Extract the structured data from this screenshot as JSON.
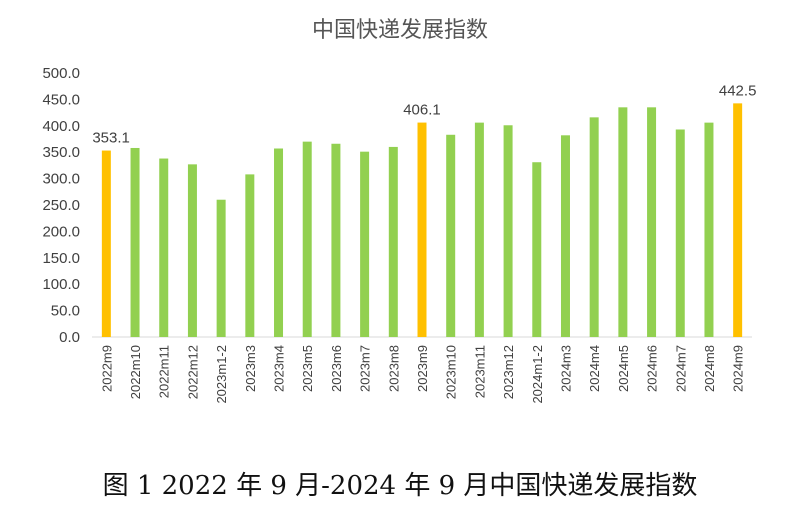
{
  "chart_data": {
    "type": "bar",
    "title": "中国快递发展指数",
    "caption": "图 1 2022 年 9 月-2024 年 9 月中国快递发展指数",
    "categories": [
      "2022m9",
      "2022m10",
      "2022m11",
      "2022m12",
      "2023m1-2",
      "2023m3",
      "2023m4",
      "2023m5",
      "2023m6",
      "2023m7",
      "2023m8",
      "2023m9",
      "2023m10",
      "2023m11",
      "2023m12",
      "2024m1-2",
      "2024m3",
      "2024m4",
      "2024m5",
      "2024m6",
      "2024m7",
      "2024m8",
      "2024m9"
    ],
    "values": [
      353.1,
      358,
      338,
      327,
      260,
      308,
      357,
      370,
      366,
      351,
      360,
      406.1,
      383,
      406,
      401,
      331,
      382,
      416,
      435,
      435,
      393,
      406,
      442.5
    ],
    "highlight_indices": [
      0,
      11,
      22
    ],
    "data_labels": [
      {
        "index": 0,
        "text": "353.1"
      },
      {
        "index": 11,
        "text": "406.1"
      },
      {
        "index": 22,
        "text": "442.5"
      }
    ],
    "ylim": [
      0,
      500
    ],
    "yticks": [
      "0.0",
      "50.0",
      "100.0",
      "150.0",
      "200.0",
      "250.0",
      "300.0",
      "350.0",
      "400.0",
      "450.0",
      "500.0"
    ],
    "xlabel": "",
    "ylabel": "",
    "grid": false,
    "colors": {
      "normal": "#92D050",
      "highlight": "#FFC000",
      "axis": "#D9D9D9",
      "text": "#404040"
    }
  }
}
